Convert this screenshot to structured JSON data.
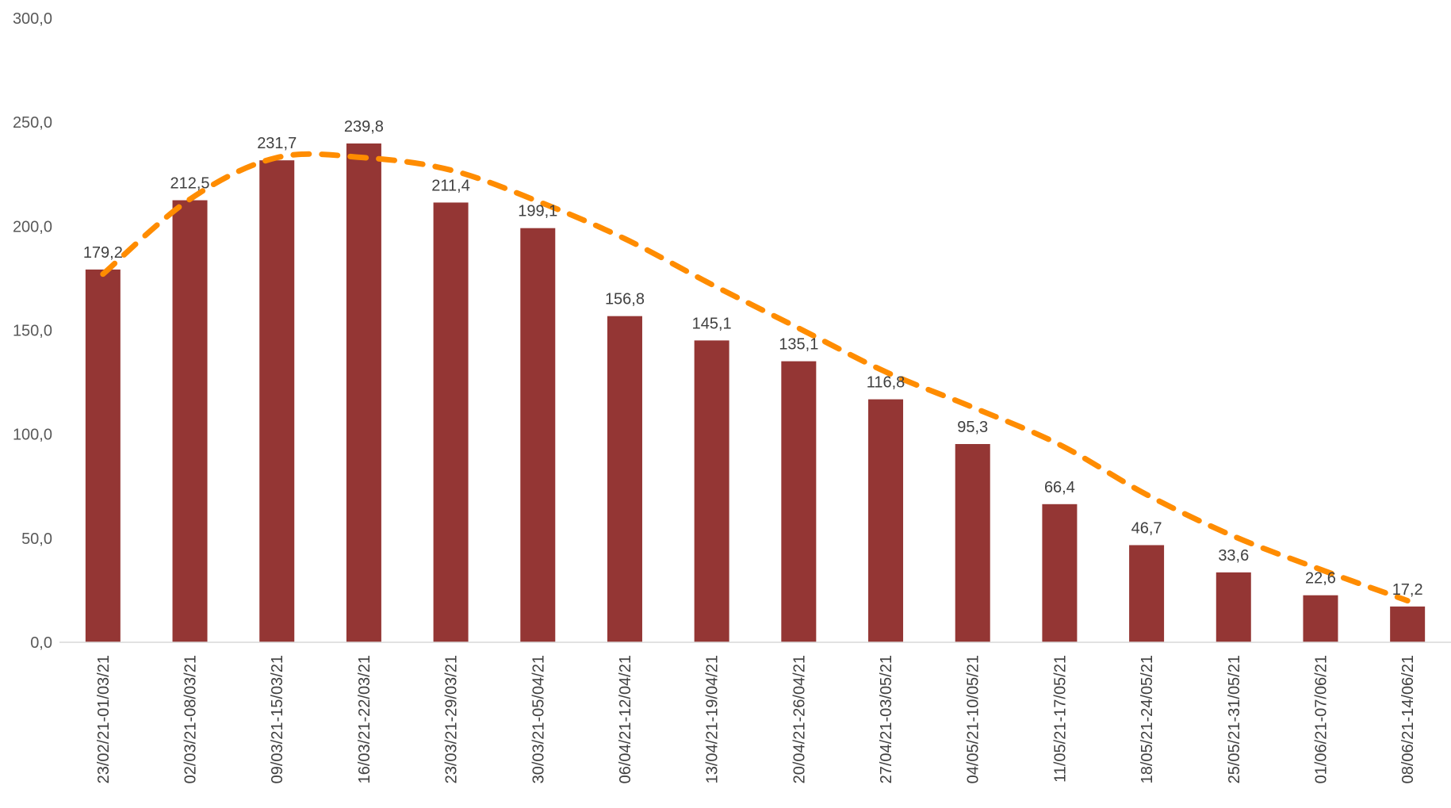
{
  "chart_data": {
    "type": "bar",
    "title": "",
    "xlabel": "",
    "ylabel": "",
    "ylim": [
      0,
      300
    ],
    "yticks": [
      "0,0",
      "50,0",
      "100,0",
      "150,0",
      "200,0",
      "250,0",
      "300,0"
    ],
    "grid": false,
    "legend": "none",
    "bar_color": "#943634",
    "trend_color": "#FF8C00",
    "categories": [
      "23/02/21-01/03/21",
      "02/03/21-08/03/21",
      "09/03/21-15/03/21",
      "16/03/21-22/03/21",
      "23/03/21-29/03/21",
      "30/03/21-05/04/21",
      "06/04/21-12/04/21",
      "13/04/21-19/04/21",
      "20/04/21-26/04/21",
      "27/04/21-03/05/21",
      "04/05/21-10/05/21",
      "11/05/21-17/05/21",
      "18/05/21-24/05/21",
      "25/05/21-31/05/21",
      "01/06/21-07/06/21",
      "08/06/21-14/06/21"
    ],
    "values": [
      179.2,
      212.5,
      231.7,
      239.8,
      211.4,
      199.1,
      156.8,
      145.1,
      135.1,
      116.8,
      95.3,
      66.4,
      46.7,
      33.6,
      22.6,
      17.2
    ],
    "value_labels": [
      "179,2",
      "212,5",
      "231,7",
      "239,8",
      "211,4",
      "199,1",
      "156,8",
      "145,1",
      "135,1",
      "116,8",
      "95,3",
      "66,4",
      "46,7",
      "33,6",
      "22,6",
      "17,2"
    ],
    "trend": [
      177,
      213,
      233,
      233,
      227,
      212,
      194,
      172,
      151,
      130,
      113,
      95,
      71,
      51,
      35,
      20
    ]
  }
}
